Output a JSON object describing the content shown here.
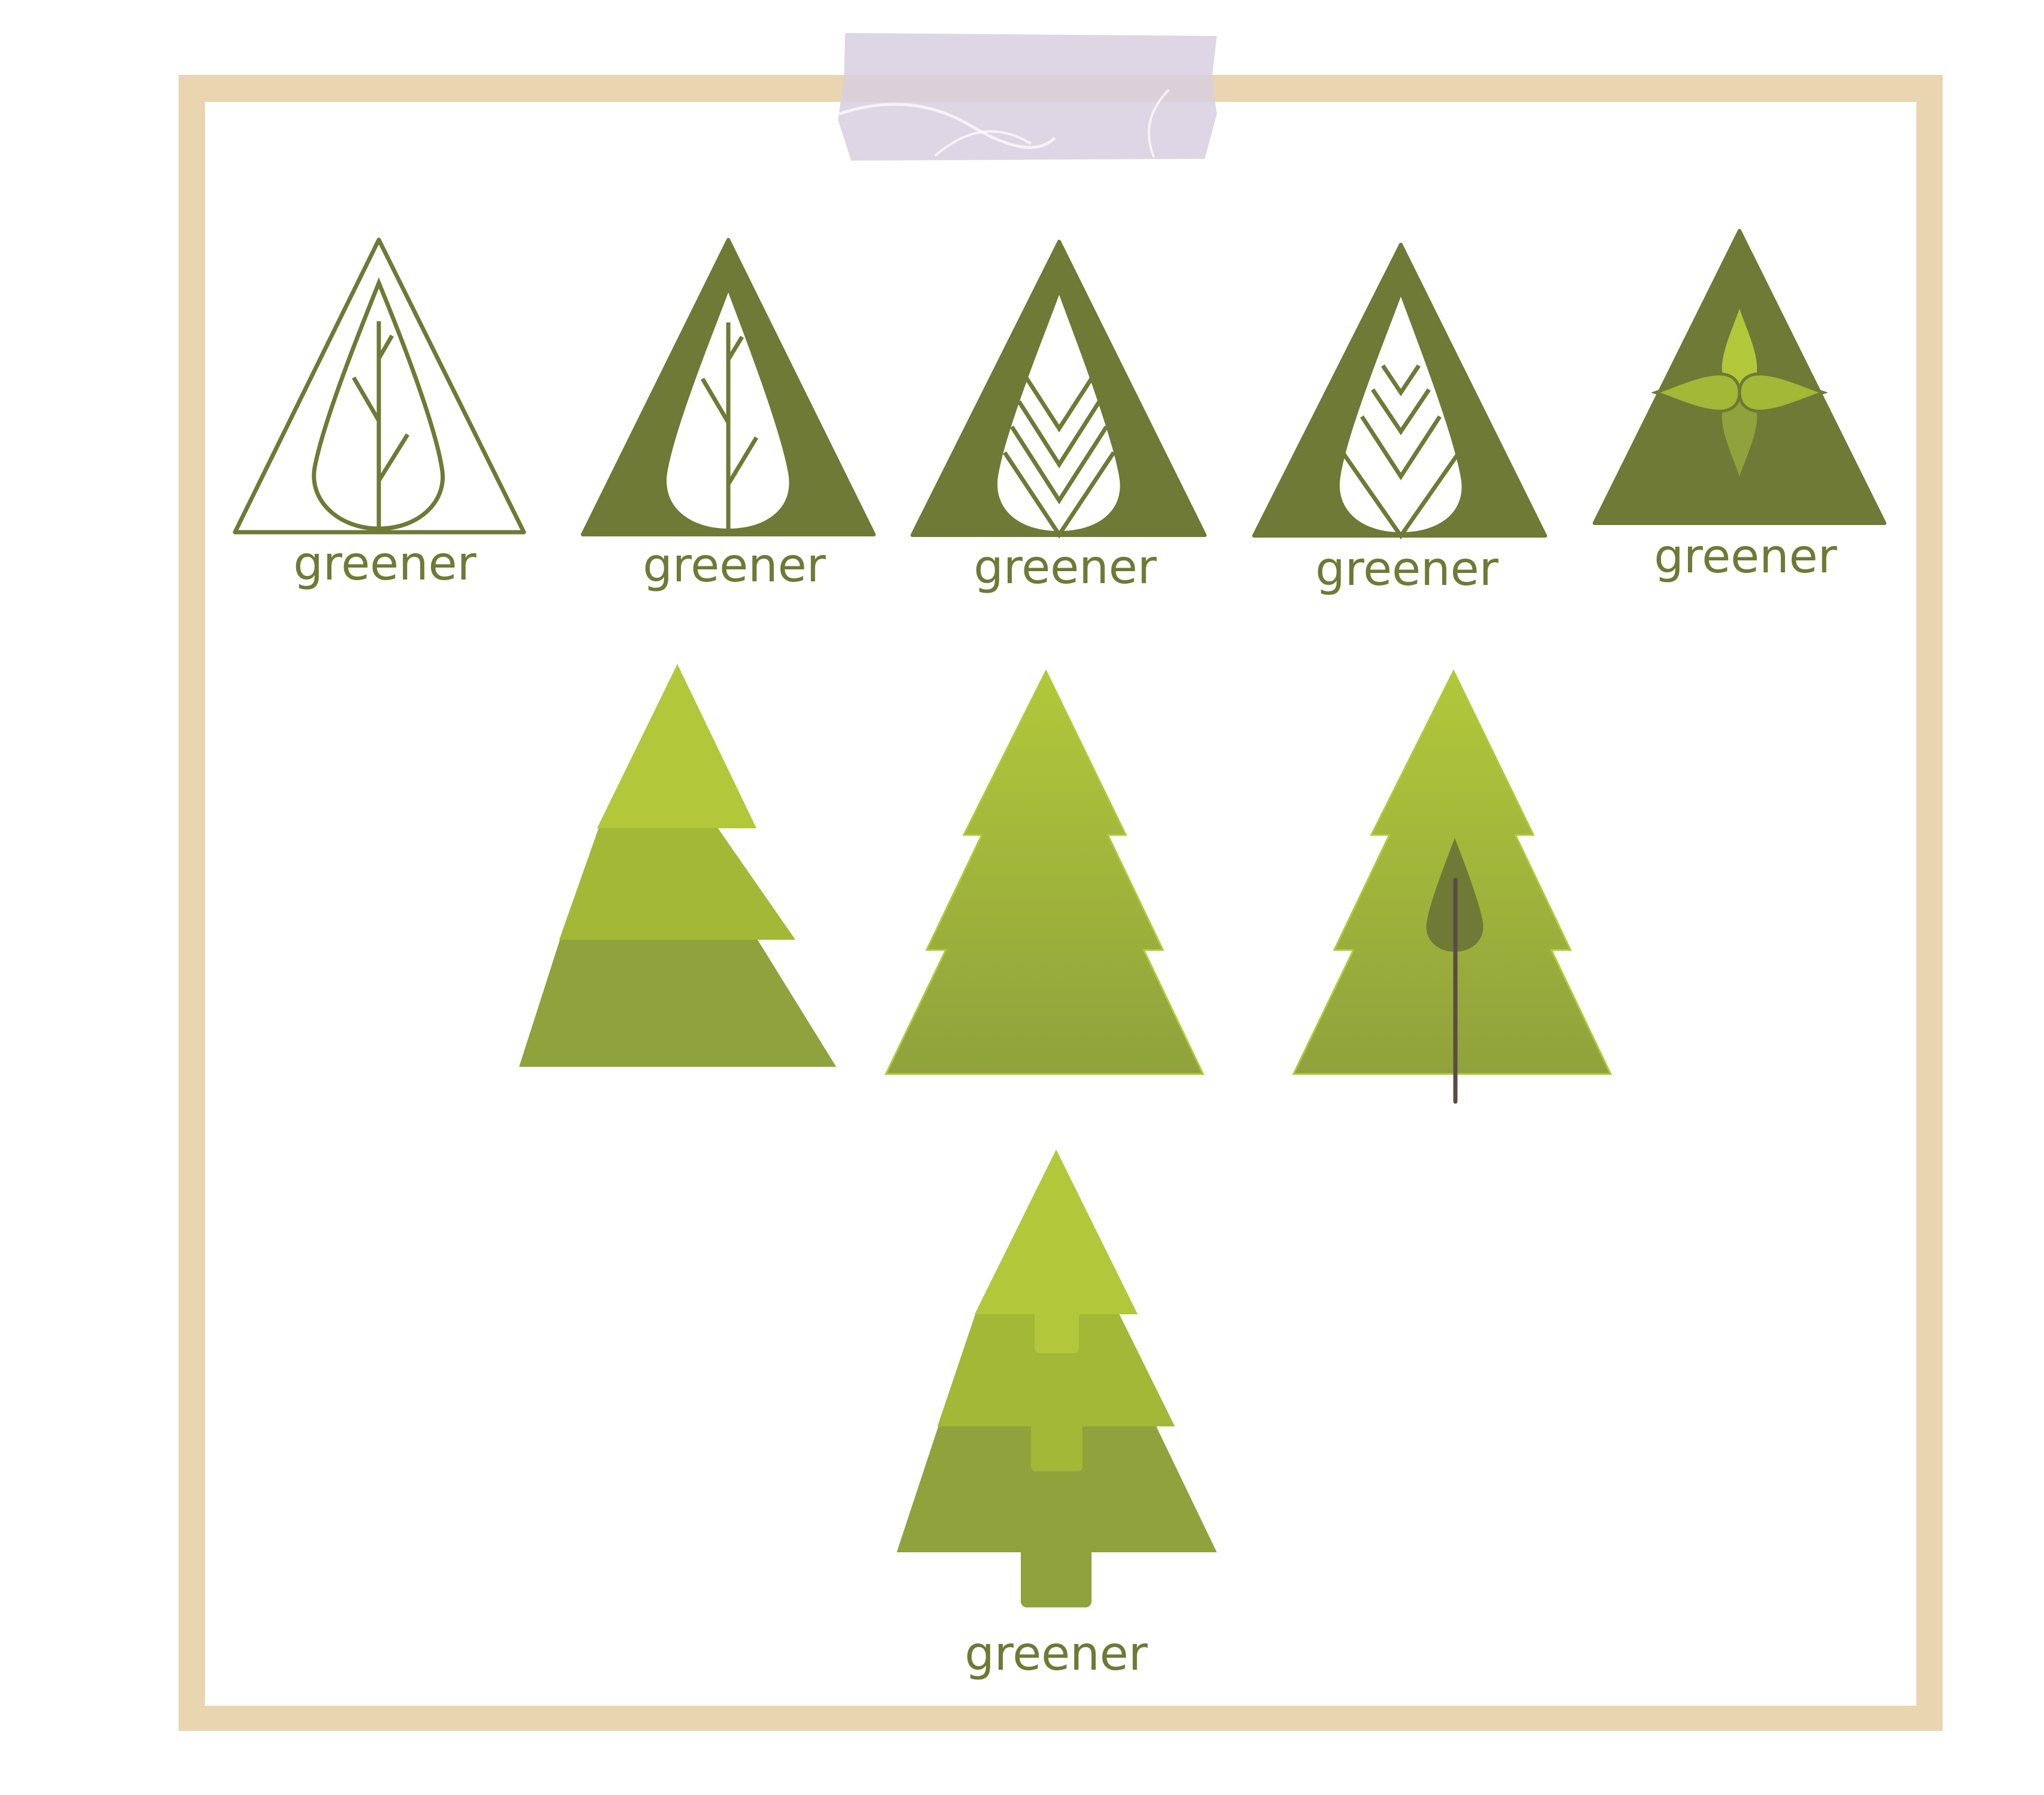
{
  "palette": {
    "frame": "#e9d5b0",
    "paper": "#ffffff",
    "dark_green": "#6e7a35",
    "light_green": "#b2c83a",
    "mid_green": "#a2b836",
    "deep_green": "#8fa23c",
    "trunk": "#5a4b45",
    "tape": "#d8cfdf"
  },
  "logos": [
    {
      "id": "logo-1",
      "style": "outline-triangle-leaf-branches",
      "label": "greener"
    },
    {
      "id": "logo-2",
      "style": "filled-triangle-leaf-branches",
      "label": "greener"
    },
    {
      "id": "logo-3",
      "style": "filled-triangle-leaf-chevrons",
      "label": "greener"
    },
    {
      "id": "logo-4",
      "style": "filled-triangle-leaf-chevrons-split",
      "label": "greener"
    },
    {
      "id": "logo-5",
      "style": "filled-triangle-four-petal-flower",
      "label": "greener"
    }
  ],
  "trees": [
    {
      "id": "tree-1",
      "style": "three-tier-stepped-colors"
    },
    {
      "id": "tree-2",
      "style": "three-tier-gradient"
    },
    {
      "id": "tree-3",
      "style": "three-tier-gradient-with-leaf-trunk"
    }
  ],
  "featured_tree": {
    "id": "tree-4",
    "style": "three-tier-with-notches-and-trunk",
    "label": "greener"
  }
}
